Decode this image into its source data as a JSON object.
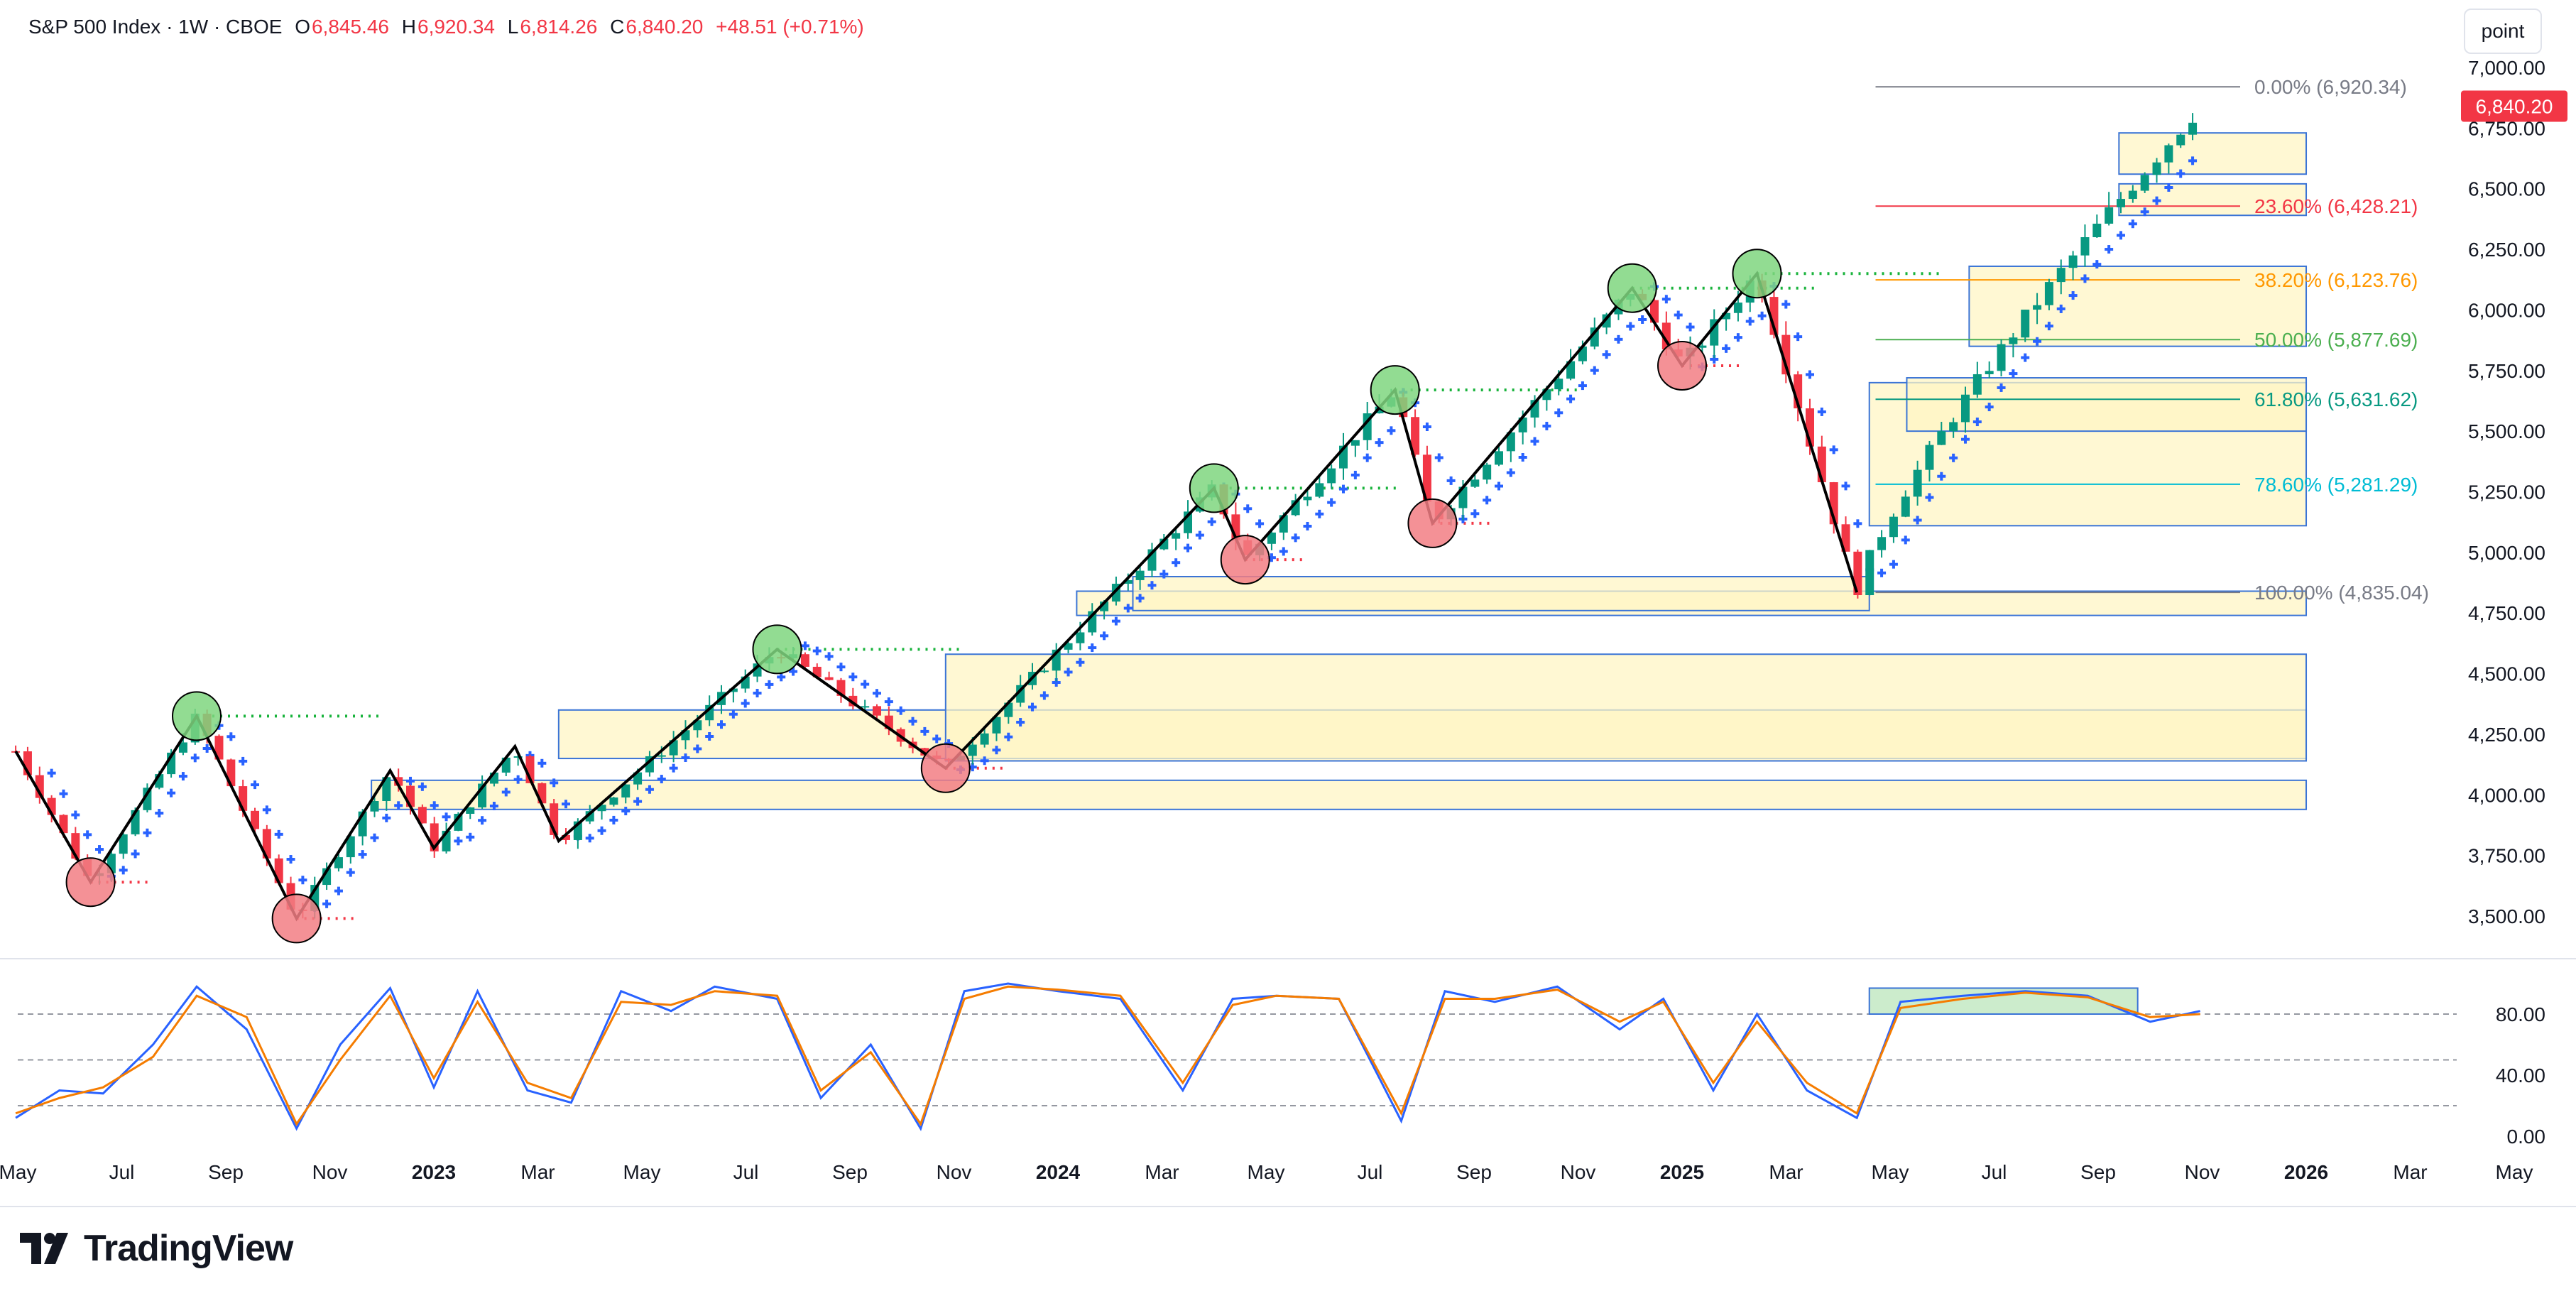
{
  "header": {
    "symbol": "S&P 500 Index · 1W · CBOE",
    "open_label": "O",
    "open": "6,845.46",
    "high_label": "H",
    "high": "6,920.34",
    "low_label": "L",
    "low": "6,814.26",
    "close_label": "C",
    "close": "6,840.20",
    "change": "+48.51 (+0.71%)"
  },
  "toolbar": {
    "scale_mode": "point"
  },
  "brand": {
    "name": "TradingView"
  },
  "colors": {
    "up": "#089981",
    "down": "#f23645",
    "zone_fill": "#fff6c4",
    "zone_border": "#3a74d6",
    "stoch_k": "#2962ff",
    "stoch_d": "#f57c00",
    "zigzag": "#000000",
    "ma": "#2962ff"
  },
  "chart_data": [
    {
      "type": "candlestick",
      "title": "S&P 500 Index · 1W · CBOE",
      "ylim": [
        3300,
        7050
      ],
      "y_ticks": [
        "3,500.00",
        "3,750.00",
        "4,000.00",
        "4,250.00",
        "4,500.00",
        "4,750.00",
        "5,000.00",
        "5,250.00",
        "5,500.00",
        "5,750.00",
        "6,000.00",
        "6,250.00",
        "6,500.00",
        "6,750.00",
        "7,000.00"
      ],
      "x_ticks": [
        "May",
        "Jul",
        "Sep",
        "Nov",
        "2023",
        "Mar",
        "May",
        "Jul",
        "Sep",
        "Nov",
        "2024",
        "Mar",
        "May",
        "Jul",
        "Sep",
        "Nov",
        "2025",
        "Mar",
        "May",
        "Jul",
        "Sep",
        "Nov",
        "2026",
        "Mar",
        "May"
      ],
      "last_price": "6,840.20",
      "fib_levels": [
        {
          "label": "0.00% (6,920.34)",
          "value": 6920.34,
          "color": "#787b86"
        },
        {
          "label": "23.60% (6,428.21)",
          "value": 6428.21,
          "color": "#f23645"
        },
        {
          "label": "38.20% (6,123.76)",
          "value": 6123.76,
          "color": "#ff9800"
        },
        {
          "label": "50.00% (5,877.69)",
          "value": 5877.69,
          "color": "#4caf50"
        },
        {
          "label": "61.80% (5,631.62)",
          "value": 5631.62,
          "color": "#089981"
        },
        {
          "label": "78.60% (5,281.29)",
          "value": 5281.29,
          "color": "#00bcd4"
        },
        {
          "label": "100.00% (4,835.04)",
          "value": 4835.04,
          "color": "#787b86"
        }
      ],
      "zigzag": [
        [
          2022.33,
          4180
        ],
        [
          2022.45,
          3640
        ],
        [
          2022.62,
          4325
        ],
        [
          2022.78,
          3490
        ],
        [
          2022.93,
          4100
        ],
        [
          2023.0,
          3780
        ],
        [
          2023.13,
          4200
        ],
        [
          2023.2,
          3810
        ],
        [
          2023.55,
          4600
        ],
        [
          2023.82,
          4110
        ],
        [
          2024.25,
          5265
        ],
        [
          2024.3,
          4970
        ],
        [
          2024.54,
          5670
        ],
        [
          2024.6,
          5120
        ],
        [
          2024.92,
          6090
        ],
        [
          2025.0,
          5770
        ],
        [
          2025.12,
          6150
        ],
        [
          2025.28,
          4835
        ]
      ],
      "swing_highs": [
        [
          2022.62,
          4325
        ],
        [
          2023.55,
          4600
        ],
        [
          2024.25,
          5265
        ],
        [
          2024.54,
          5670
        ],
        [
          2024.92,
          6090
        ],
        [
          2025.12,
          6150
        ]
      ],
      "swing_lows": [
        [
          2022.45,
          3640
        ],
        [
          2022.78,
          3490
        ],
        [
          2023.82,
          4110
        ],
        [
          2024.3,
          4970
        ],
        [
          2024.6,
          5120
        ],
        [
          2025.0,
          5770
        ]
      ],
      "zones": [
        [
          2022.9,
          3940,
          2026.0,
          4060
        ],
        [
          2023.2,
          4150,
          2026.0,
          4350
        ],
        [
          2023.82,
          4140,
          2026.0,
          4580
        ],
        [
          2024.03,
          4740,
          2026.0,
          4840
        ],
        [
          2024.12,
          4760,
          2025.3,
          4900
        ],
        [
          2025.3,
          5110,
          2026.0,
          5700
        ],
        [
          2025.36,
          5500,
          2026.0,
          5720
        ],
        [
          2025.46,
          5850,
          2026.0,
          6180
        ],
        [
          2025.7,
          6390,
          2026.0,
          6520
        ],
        [
          2025.7,
          6560,
          2026.0,
          6730
        ]
      ],
      "candles_start": [
        2022.33,
        4180
      ],
      "candles_end": [
        2025.83,
        6840.2
      ]
    },
    {
      "type": "line",
      "title": "",
      "ylim": [
        0,
        100
      ],
      "y_ticks": [
        "0.00",
        "40.00",
        "80.00"
      ],
      "reference_lines": [
        20,
        50,
        80
      ],
      "series": [
        {
          "color": "#2962ff",
          "x": [
            2022.33,
            2022.4,
            2022.47,
            2022.55,
            2022.62,
            2022.7,
            2022.78,
            2022.85,
            2022.93,
            2023.0,
            2023.07,
            2023.15,
            2023.22,
            2023.3,
            2023.38,
            2023.45,
            2023.55,
            2023.62,
            2023.7,
            2023.78,
            2023.85,
            2023.92,
            2024.0,
            2024.1,
            2024.2,
            2024.28,
            2024.35,
            2024.45,
            2024.55,
            2024.62,
            2024.7,
            2024.8,
            2024.9,
            2024.97,
            2025.05,
            2025.12,
            2025.2,
            2025.28,
            2025.35,
            2025.45,
            2025.55,
            2025.65,
            2025.75,
            2025.83
          ],
          "y": [
            12,
            30,
            28,
            60,
            98,
            70,
            5,
            60,
            97,
            32,
            95,
            30,
            22,
            95,
            82,
            98,
            90,
            25,
            60,
            5,
            95,
            100,
            95,
            90,
            30,
            90,
            92,
            90,
            10,
            95,
            88,
            98,
            70,
            90,
            30,
            80,
            30,
            12,
            88,
            92,
            95,
            92,
            75,
            82
          ]
        },
        {
          "color": "#f57c00",
          "x": [
            2022.33,
            2022.4,
            2022.47,
            2022.55,
            2022.62,
            2022.7,
            2022.78,
            2022.85,
            2022.93,
            2023.0,
            2023.07,
            2023.15,
            2023.22,
            2023.3,
            2023.38,
            2023.45,
            2023.55,
            2023.62,
            2023.7,
            2023.78,
            2023.85,
            2023.92,
            2024.0,
            2024.1,
            2024.2,
            2024.28,
            2024.35,
            2024.45,
            2024.55,
            2024.62,
            2024.7,
            2024.8,
            2024.9,
            2024.97,
            2025.05,
            2025.12,
            2025.2,
            2025.28,
            2025.35,
            2025.45,
            2025.55,
            2025.65,
            2025.75,
            2025.83
          ],
          "y": [
            15,
            25,
            32,
            52,
            92,
            78,
            8,
            50,
            92,
            38,
            88,
            35,
            25,
            88,
            86,
            95,
            92,
            30,
            55,
            8,
            90,
            98,
            96,
            92,
            35,
            86,
            92,
            90,
            15,
            90,
            90,
            96,
            75,
            88,
            35,
            75,
            35,
            15,
            84,
            90,
            94,
            91,
            78,
            80
          ]
        }
      ],
      "highlight_box": [
        2025.3,
        80,
        2025.73,
        97
      ]
    }
  ]
}
